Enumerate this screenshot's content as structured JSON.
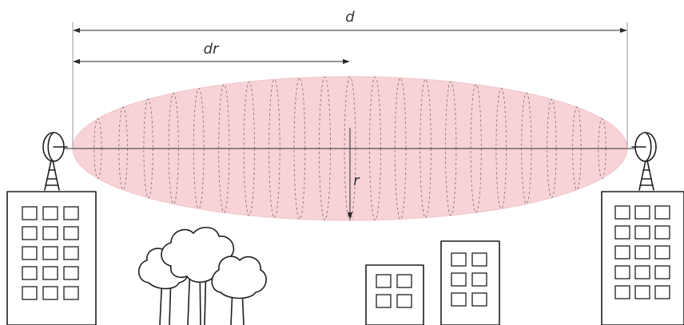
{
  "labels": {
    "distance": "d",
    "distance_fraction": "dr",
    "radius": "r"
  },
  "colors": {
    "zone_fill": "#f7d3d7",
    "zone_stroke": "#f2c3c8",
    "ink": "#1e1e1e"
  }
}
